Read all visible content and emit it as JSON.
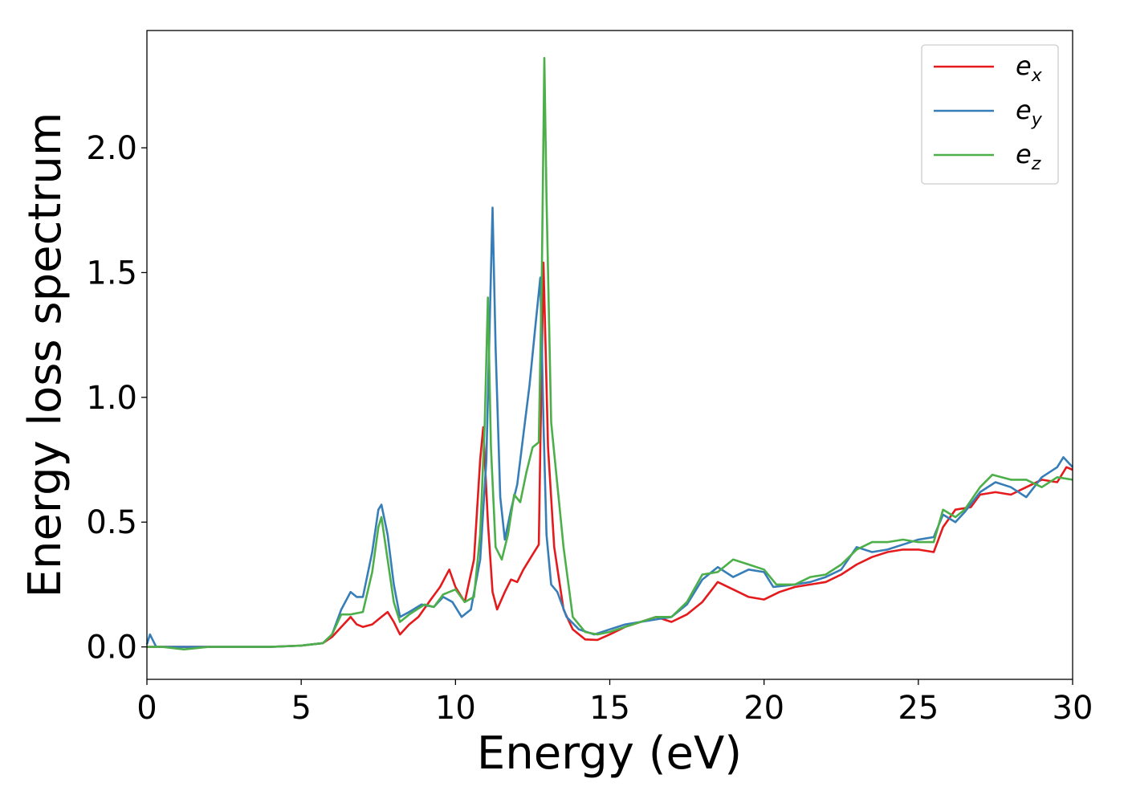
{
  "chart_data": {
    "type": "line",
    "xlabel": "Energy (eV)",
    "ylabel": "Energy loss spectrum",
    "xlim": [
      0,
      30
    ],
    "ylim": [
      -0.13,
      2.47
    ],
    "xticks": [
      0,
      5,
      10,
      15,
      20,
      25,
      30
    ],
    "xtick_labels": [
      "0",
      "5",
      "10",
      "15",
      "20",
      "25",
      "30"
    ],
    "yticks": [
      0.0,
      0.5,
      1.0,
      1.5,
      2.0
    ],
    "ytick_labels": [
      "0.0",
      "0.5",
      "1.0",
      "1.5",
      "2.0"
    ],
    "grid": false,
    "legend_position": "top-right",
    "series": [
      {
        "name": "e_x",
        "label_main": "e",
        "label_sub": "x",
        "color": "#e41a1c",
        "points": [
          [
            0,
            0
          ],
          [
            1,
            0
          ],
          [
            2,
            0
          ],
          [
            3,
            0
          ],
          [
            4,
            0
          ],
          [
            5,
            0.005
          ],
          [
            5.7,
            0.015
          ],
          [
            6,
            0.04
          ],
          [
            6.3,
            0.08
          ],
          [
            6.6,
            0.12
          ],
          [
            6.8,
            0.09
          ],
          [
            7.0,
            0.08
          ],
          [
            7.3,
            0.09
          ],
          [
            7.6,
            0.12
          ],
          [
            7.8,
            0.14
          ],
          [
            8.0,
            0.1
          ],
          [
            8.2,
            0.05
          ],
          [
            8.5,
            0.09
          ],
          [
            8.8,
            0.12
          ],
          [
            9.2,
            0.19
          ],
          [
            9.5,
            0.24
          ],
          [
            9.8,
            0.31
          ],
          [
            10.0,
            0.24
          ],
          [
            10.3,
            0.18
          ],
          [
            10.6,
            0.35
          ],
          [
            10.8,
            0.75
          ],
          [
            10.9,
            0.88
          ],
          [
            11.05,
            0.5
          ],
          [
            11.2,
            0.22
          ],
          [
            11.35,
            0.15
          ],
          [
            11.6,
            0.22
          ],
          [
            11.8,
            0.27
          ],
          [
            12.0,
            0.26
          ],
          [
            12.2,
            0.31
          ],
          [
            12.5,
            0.37
          ],
          [
            12.7,
            0.41
          ],
          [
            12.75,
            0.8
          ],
          [
            12.85,
            1.54
          ],
          [
            12.9,
            1.3
          ],
          [
            13.0,
            0.8
          ],
          [
            13.2,
            0.4
          ],
          [
            13.5,
            0.15
          ],
          [
            13.8,
            0.07
          ],
          [
            14.2,
            0.03
          ],
          [
            14.6,
            0.028
          ],
          [
            15.0,
            0.05
          ],
          [
            15.5,
            0.08
          ],
          [
            16.0,
            0.1
          ],
          [
            16.5,
            0.12
          ],
          [
            17.0,
            0.1
          ],
          [
            17.5,
            0.13
          ],
          [
            18.0,
            0.18
          ],
          [
            18.5,
            0.26
          ],
          [
            19.0,
            0.23
          ],
          [
            19.5,
            0.2
          ],
          [
            20.0,
            0.19
          ],
          [
            20.5,
            0.22
          ],
          [
            21.0,
            0.24
          ],
          [
            21.5,
            0.25
          ],
          [
            22.0,
            0.26
          ],
          [
            22.5,
            0.29
          ],
          [
            23.0,
            0.33
          ],
          [
            23.5,
            0.36
          ],
          [
            24.0,
            0.38
          ],
          [
            24.5,
            0.39
          ],
          [
            25.0,
            0.39
          ],
          [
            25.5,
            0.38
          ],
          [
            25.8,
            0.48
          ],
          [
            26.2,
            0.55
          ],
          [
            26.7,
            0.56
          ],
          [
            27.0,
            0.61
          ],
          [
            27.5,
            0.62
          ],
          [
            28.0,
            0.61
          ],
          [
            28.5,
            0.64
          ],
          [
            29.0,
            0.67
          ],
          [
            29.5,
            0.66
          ],
          [
            29.8,
            0.72
          ],
          [
            30.0,
            0.71
          ]
        ]
      },
      {
        "name": "e_y",
        "label_main": "e",
        "label_sub": "y",
        "color": "#377eb8",
        "points": [
          [
            0,
            0.01
          ],
          [
            0.1,
            0.05
          ],
          [
            0.3,
            0.0
          ],
          [
            1,
            0
          ],
          [
            2,
            0
          ],
          [
            3,
            0
          ],
          [
            4,
            0
          ],
          [
            5,
            0.005
          ],
          [
            5.7,
            0.015
          ],
          [
            6,
            0.05
          ],
          [
            6.3,
            0.15
          ],
          [
            6.6,
            0.22
          ],
          [
            6.8,
            0.2
          ],
          [
            7.0,
            0.2
          ],
          [
            7.3,
            0.38
          ],
          [
            7.5,
            0.55
          ],
          [
            7.6,
            0.57
          ],
          [
            7.8,
            0.45
          ],
          [
            8.0,
            0.25
          ],
          [
            8.2,
            0.12
          ],
          [
            8.5,
            0.14
          ],
          [
            8.9,
            0.17
          ],
          [
            9.3,
            0.16
          ],
          [
            9.6,
            0.2
          ],
          [
            9.9,
            0.18
          ],
          [
            10.2,
            0.12
          ],
          [
            10.5,
            0.15
          ],
          [
            10.8,
            0.35
          ],
          [
            11.0,
            0.75
          ],
          [
            11.15,
            1.5
          ],
          [
            11.2,
            1.76
          ],
          [
            11.3,
            1.2
          ],
          [
            11.45,
            0.6
          ],
          [
            11.6,
            0.43
          ],
          [
            11.8,
            0.55
          ],
          [
            12.0,
            0.65
          ],
          [
            12.2,
            0.85
          ],
          [
            12.4,
            1.05
          ],
          [
            12.6,
            1.3
          ],
          [
            12.75,
            1.48
          ],
          [
            12.85,
            0.9
          ],
          [
            12.95,
            0.45
          ],
          [
            13.1,
            0.25
          ],
          [
            13.3,
            0.22
          ],
          [
            13.6,
            0.12
          ],
          [
            14.0,
            0.07
          ],
          [
            14.5,
            0.05
          ],
          [
            15.0,
            0.07
          ],
          [
            15.5,
            0.09
          ],
          [
            16.0,
            0.1
          ],
          [
            16.5,
            0.11
          ],
          [
            17.0,
            0.12
          ],
          [
            17.5,
            0.17
          ],
          [
            18.0,
            0.27
          ],
          [
            18.5,
            0.32
          ],
          [
            19.0,
            0.28
          ],
          [
            19.5,
            0.31
          ],
          [
            20.0,
            0.3
          ],
          [
            20.3,
            0.24
          ],
          [
            21.0,
            0.25
          ],
          [
            21.5,
            0.26
          ],
          [
            22.0,
            0.28
          ],
          [
            22.5,
            0.31
          ],
          [
            23.0,
            0.4
          ],
          [
            23.5,
            0.38
          ],
          [
            24.0,
            0.39
          ],
          [
            24.5,
            0.41
          ],
          [
            25.0,
            0.43
          ],
          [
            25.5,
            0.44
          ],
          [
            25.8,
            0.53
          ],
          [
            26.2,
            0.5
          ],
          [
            26.5,
            0.54
          ],
          [
            27.0,
            0.62
          ],
          [
            27.5,
            0.66
          ],
          [
            28.0,
            0.64
          ],
          [
            28.5,
            0.6
          ],
          [
            29.0,
            0.68
          ],
          [
            29.5,
            0.72
          ],
          [
            29.7,
            0.76
          ],
          [
            30.0,
            0.72
          ]
        ]
      },
      {
        "name": "e_z",
        "label_main": "e",
        "label_sub": "z",
        "color": "#4daf4a",
        "points": [
          [
            0,
            0
          ],
          [
            0.5,
            0.0
          ],
          [
            1.2,
            -0.01
          ],
          [
            2,
            0
          ],
          [
            3,
            0
          ],
          [
            4,
            0
          ],
          [
            5,
            0.005
          ],
          [
            5.7,
            0.015
          ],
          [
            6,
            0.05
          ],
          [
            6.3,
            0.13
          ],
          [
            6.6,
            0.13
          ],
          [
            7.0,
            0.14
          ],
          [
            7.3,
            0.3
          ],
          [
            7.5,
            0.48
          ],
          [
            7.6,
            0.52
          ],
          [
            7.8,
            0.35
          ],
          [
            8.0,
            0.18
          ],
          [
            8.2,
            0.1
          ],
          [
            8.5,
            0.13
          ],
          [
            9.0,
            0.17
          ],
          [
            9.3,
            0.16
          ],
          [
            9.6,
            0.21
          ],
          [
            10.0,
            0.23
          ],
          [
            10.3,
            0.18
          ],
          [
            10.6,
            0.2
          ],
          [
            10.8,
            0.45
          ],
          [
            10.95,
            0.9
          ],
          [
            11.05,
            1.4
          ],
          [
            11.15,
            0.8
          ],
          [
            11.3,
            0.4
          ],
          [
            11.5,
            0.35
          ],
          [
            11.7,
            0.45
          ],
          [
            11.9,
            0.61
          ],
          [
            12.1,
            0.58
          ],
          [
            12.3,
            0.7
          ],
          [
            12.5,
            0.8
          ],
          [
            12.7,
            0.82
          ],
          [
            12.8,
            1.5
          ],
          [
            12.88,
            2.36
          ],
          [
            12.95,
            1.8
          ],
          [
            13.1,
            0.9
          ],
          [
            13.3,
            0.65
          ],
          [
            13.5,
            0.4
          ],
          [
            13.8,
            0.12
          ],
          [
            14.2,
            0.06
          ],
          [
            14.6,
            0.05
          ],
          [
            15.0,
            0.06
          ],
          [
            15.5,
            0.08
          ],
          [
            16.0,
            0.1
          ],
          [
            16.5,
            0.12
          ],
          [
            17.0,
            0.12
          ],
          [
            17.5,
            0.18
          ],
          [
            18.0,
            0.29
          ],
          [
            18.5,
            0.3
          ],
          [
            19.0,
            0.35
          ],
          [
            19.5,
            0.33
          ],
          [
            20.0,
            0.31
          ],
          [
            20.4,
            0.25
          ],
          [
            21.0,
            0.25
          ],
          [
            21.5,
            0.28
          ],
          [
            22.0,
            0.29
          ],
          [
            22.5,
            0.33
          ],
          [
            23.0,
            0.39
          ],
          [
            23.5,
            0.42
          ],
          [
            24.0,
            0.42
          ],
          [
            24.5,
            0.43
          ],
          [
            25.0,
            0.42
          ],
          [
            25.5,
            0.42
          ],
          [
            25.8,
            0.55
          ],
          [
            26.2,
            0.52
          ],
          [
            26.5,
            0.55
          ],
          [
            27.0,
            0.64
          ],
          [
            27.4,
            0.69
          ],
          [
            28.0,
            0.67
          ],
          [
            28.5,
            0.67
          ],
          [
            29.0,
            0.64
          ],
          [
            29.5,
            0.68
          ],
          [
            30.0,
            0.67
          ]
        ]
      }
    ]
  }
}
